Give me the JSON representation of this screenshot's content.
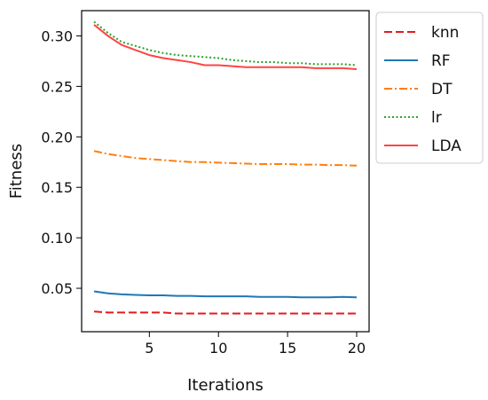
{
  "chart_data": {
    "type": "line",
    "title": "",
    "xlabel": "Iterations",
    "ylabel": "Fitness",
    "xlim": [
      0.1,
      20.9
    ],
    "ylim": [
      0.007,
      0.325
    ],
    "xticks": [
      5,
      10,
      15,
      20
    ],
    "xtick_labels": [
      "5",
      "10",
      "15",
      "20"
    ],
    "yticks": [
      0.05,
      0.1,
      0.15,
      0.2,
      0.25,
      0.3
    ],
    "ytick_labels": [
      "0.05",
      "0.10",
      "0.15",
      "0.20",
      "0.25",
      "0.30"
    ],
    "grid": false,
    "legend_position": "outside-right-top",
    "x": [
      1,
      2,
      3,
      4,
      5,
      6,
      7,
      8,
      9,
      10,
      11,
      12,
      13,
      14,
      15,
      16,
      17,
      18,
      19,
      20
    ],
    "series": [
      {
        "name": "knn",
        "color": "#e41a1c",
        "dash": "dashed",
        "values": [
          0.027,
          0.026,
          0.026,
          0.026,
          0.026,
          0.026,
          0.025,
          0.025,
          0.025,
          0.025,
          0.025,
          0.025,
          0.025,
          0.025,
          0.025,
          0.025,
          0.025,
          0.025,
          0.025,
          0.025
        ]
      },
      {
        "name": "RF",
        "color": "#1f77b4",
        "dash": "solid",
        "values": [
          0.047,
          0.045,
          0.044,
          0.0435,
          0.043,
          0.043,
          0.0425,
          0.0425,
          0.042,
          0.042,
          0.042,
          0.042,
          0.0415,
          0.0415,
          0.0415,
          0.041,
          0.041,
          0.041,
          0.0415,
          0.041
        ]
      },
      {
        "name": "DT",
        "color": "#ff7f0e",
        "dash": "dashdot",
        "values": [
          0.186,
          0.183,
          0.181,
          0.179,
          0.178,
          0.177,
          0.176,
          0.175,
          0.175,
          0.1745,
          0.174,
          0.1735,
          0.173,
          0.173,
          0.173,
          0.1725,
          0.1725,
          0.172,
          0.172,
          0.1715
        ]
      },
      {
        "name": "lr",
        "color": "#2ca02c",
        "dash": "dotted",
        "values": [
          0.314,
          0.303,
          0.294,
          0.29,
          0.286,
          0.283,
          0.281,
          0.28,
          0.279,
          0.278,
          0.276,
          0.275,
          0.274,
          0.274,
          0.273,
          0.273,
          0.272,
          0.272,
          0.272,
          0.271
        ]
      },
      {
        "name": "LDA",
        "color": "#ff4444",
        "dash": "solid",
        "values": [
          0.311,
          0.3,
          0.291,
          0.286,
          0.281,
          0.278,
          0.276,
          0.274,
          0.271,
          0.271,
          0.27,
          0.269,
          0.269,
          0.269,
          0.269,
          0.269,
          0.268,
          0.268,
          0.268,
          0.267
        ]
      }
    ]
  }
}
